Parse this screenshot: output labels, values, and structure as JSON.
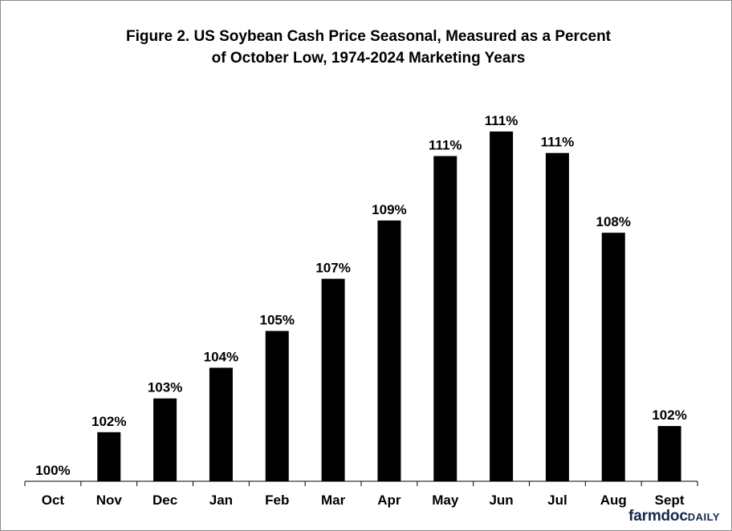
{
  "brand": {
    "main": "farmdoc",
    "tail": "DAILY",
    "color": "#13294b"
  },
  "chart_data": {
    "type": "bar",
    "title_lines": [
      "Figure 2.  US Soybean  Cash Price Seasonal,  Measured  as a Percent",
      "of October  Low, 1974-2024  Marketing  Years"
    ],
    "categories": [
      "Oct",
      "Nov",
      "Dec",
      "Jan",
      "Feb",
      "Mar",
      "Apr",
      "May",
      "Jun",
      "Jul",
      "Aug",
      "Sept"
    ],
    "values": [
      100.0,
      101.6,
      102.7,
      103.7,
      104.9,
      106.6,
      108.5,
      110.6,
      111.4,
      110.7,
      108.1,
      101.8
    ],
    "labels": [
      "100%",
      "102%",
      "103%",
      "104%",
      "105%",
      "107%",
      "109%",
      "111%",
      "111%",
      "111%",
      "108%",
      "102%"
    ],
    "ylim": [
      100,
      112
    ],
    "xlabel": "",
    "ylabel": "",
    "grid": false,
    "legend": "none",
    "bar_color": "#000000"
  }
}
